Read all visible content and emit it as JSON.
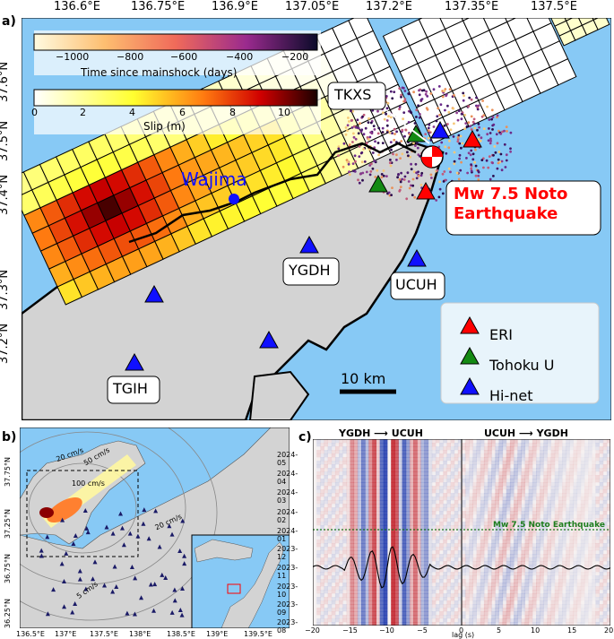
{
  "panel_a": {
    "letter": "a)",
    "lon_ticks": [
      "136.6°E",
      "136.75°E",
      "136.9°E",
      "137.05°E",
      "137.2°E",
      "137.35°E",
      "137.5°E"
    ],
    "lat_ticks": [
      "37.6°N",
      "37.5°N",
      "37.4°N",
      "37.3°N",
      "37.2°N"
    ],
    "colorbar_time": {
      "label": "Time since mainshock (days)",
      "ticks": [
        "−1000",
        "−800",
        "−600",
        "−400",
        "−200"
      ]
    },
    "colorbar_slip": {
      "label": "Slip (m)",
      "ticks": [
        "0",
        "2",
        "4",
        "6",
        "8",
        "10"
      ]
    },
    "city": "Wajima",
    "stations": [
      {
        "code": "TKXS",
        "network": "Tohoku U"
      },
      {
        "code": "YGDH",
        "network": "Hi-net"
      },
      {
        "code": "UCUH",
        "network": "Hi-net"
      },
      {
        "code": "TGIH",
        "network": "Hi-net"
      }
    ],
    "event_label_line1": "Mw 7.5 Noto",
    "event_label_line2": "Earthquake",
    "legend": [
      {
        "label": "ERI",
        "color": "#ff0000"
      },
      {
        "label": "Tohoku U",
        "color": "#138a13"
      },
      {
        "label": "Hi-net",
        "color": "#1010ff"
      }
    ],
    "scale_bar": "10 km"
  },
  "panel_b": {
    "letter": "b)",
    "lon_ticks": [
      "136.5°E",
      "137°E",
      "137.5°E",
      "138°E",
      "138.5°E",
      "139°E",
      "139.5°E"
    ],
    "lat_ticks": [
      "37.75°N",
      "37.25°N",
      "36.75°N",
      "36.25°N"
    ],
    "contours": [
      "20 cm/s",
      "50 cm/s",
      "100 cm/s",
      "20 cm/s",
      "5 cm/s"
    ]
  },
  "panel_c": {
    "letter": "c)",
    "title_left": "YGDH ⟶ UCUH",
    "title_right": "UCUH ⟶ YGDH",
    "xlabel": "lag (s)",
    "x_ticks": [
      "−20",
      "−15",
      "−10",
      "−5",
      "0",
      "5",
      "10",
      "15",
      "20"
    ],
    "y_ticks": [
      "2024-05",
      "2024-04",
      "2024-03",
      "2024-02",
      "2024-01",
      "2023-12",
      "2023-11",
      "2023-10",
      "2023-09",
      "2023-08"
    ],
    "event_label": "Mw 7.5 Noto Earthquake"
  },
  "colors": {
    "ocean": "#87c9f5",
    "land": "#d3d3d3",
    "event": "#ff0000",
    "hinet": "#1010ff",
    "tohoku": "#138a13"
  }
}
